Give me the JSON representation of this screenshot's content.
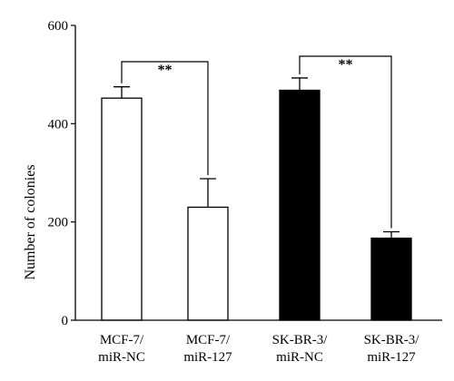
{
  "chart_data": {
    "type": "bar",
    "title": "",
    "xlabel": "",
    "ylabel": "Number of colonies",
    "ylim": [
      0,
      600
    ],
    "yticks": [
      0,
      200,
      400,
      600
    ],
    "grid": false,
    "categories": [
      [
        "MCF-7/",
        "miR-NC"
      ],
      [
        "MCF-7/",
        "miR-127"
      ],
      [
        "SK-BR-3/",
        "miR-NC"
      ],
      [
        "SK-BR-3/",
        "miR-127"
      ]
    ],
    "values": [
      452,
      230,
      468,
      167
    ],
    "errors": [
      23,
      58,
      25,
      13
    ],
    "bar_colors": [
      "#ffffff",
      "#ffffff",
      "#000000",
      "#000000"
    ],
    "significance": [
      {
        "from": 0,
        "to": 1,
        "label": "**"
      },
      {
        "from": 2,
        "to": 3,
        "label": "**"
      }
    ]
  }
}
